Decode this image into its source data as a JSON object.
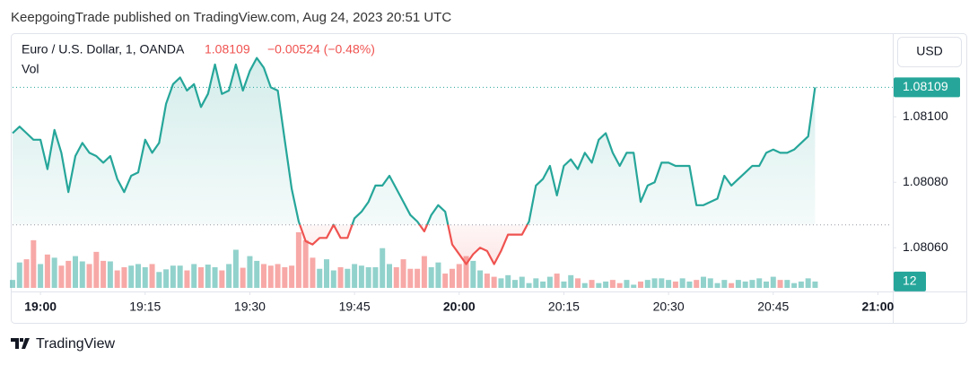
{
  "header": "KeepgoingTrade published on TradingView.com, Aug 24, 2023 20:51 UTC",
  "footer": "TradingView",
  "chart_data": {
    "type": "baseline",
    "title": "Euro / U.S. Dollar, 1, OANDA",
    "change": "−0.00524 (−0.48%)",
    "volume_name": "Vol",
    "currency": "USD",
    "colors": {
      "up": "#26a69a",
      "down": "#ef5350"
    },
    "baseline": 1.08067,
    "x": [
      "18:56",
      "18:57",
      "18:58",
      "18:59",
      "19:00",
      "19:01",
      "19:02",
      "19:03",
      "19:04",
      "19:05",
      "19:06",
      "19:07",
      "19:08",
      "19:09",
      "19:10",
      "19:11",
      "19:12",
      "19:13",
      "19:14",
      "19:15",
      "19:16",
      "19:17",
      "19:18",
      "19:19",
      "19:20",
      "19:21",
      "19:22",
      "19:23",
      "19:24",
      "19:25",
      "19:26",
      "19:27",
      "19:28",
      "19:29",
      "19:30",
      "19:31",
      "19:32",
      "19:33",
      "19:34",
      "19:35",
      "19:36",
      "19:37",
      "19:38",
      "19:39",
      "19:40",
      "19:41",
      "19:42",
      "19:43",
      "19:44",
      "19:45",
      "19:46",
      "19:47",
      "19:48",
      "19:49",
      "19:50",
      "19:51",
      "19:52",
      "19:53",
      "19:54",
      "19:55",
      "19:56",
      "19:57",
      "19:58",
      "19:59",
      "20:00",
      "20:01",
      "20:02",
      "20:03",
      "20:04",
      "20:05",
      "20:06",
      "20:07",
      "20:08",
      "20:09",
      "20:10",
      "20:11",
      "20:12",
      "20:13",
      "20:14",
      "20:15",
      "20:16",
      "20:17",
      "20:18",
      "20:19",
      "20:20",
      "20:21",
      "20:22",
      "20:23",
      "20:24",
      "20:25",
      "20:26",
      "20:27",
      "20:28",
      "20:29",
      "20:30",
      "20:31",
      "20:32",
      "20:33",
      "20:34",
      "20:35",
      "20:36",
      "20:37",
      "20:38",
      "20:39",
      "20:40",
      "20:41",
      "20:42",
      "20:43",
      "20:44",
      "20:45",
      "20:46",
      "20:47",
      "20:48",
      "20:49",
      "20:50",
      "20:51"
    ],
    "values": [
      1.08095,
      1.08097,
      1.08095,
      1.08093,
      1.08093,
      1.08084,
      1.08096,
      1.08089,
      1.08077,
      1.08088,
      1.08092,
      1.08089,
      1.08088,
      1.08086,
      1.08088,
      1.08081,
      1.08077,
      1.08082,
      1.08083,
      1.08093,
      1.08089,
      1.08092,
      1.08104,
      1.0811,
      1.08112,
      1.08108,
      1.0811,
      1.08103,
      1.08107,
      1.08116,
      1.08107,
      1.08108,
      1.08116,
      1.08108,
      1.08114,
      1.08118,
      1.08115,
      1.08109,
      1.08108,
      1.08093,
      1.08078,
      1.08068,
      1.08062,
      1.08061,
      1.08063,
      1.08063,
      1.08067,
      1.08063,
      1.08063,
      1.08069,
      1.08071,
      1.08074,
      1.08079,
      1.08079,
      1.08082,
      1.08078,
      1.08074,
      1.0807,
      1.08068,
      1.08065,
      1.0807,
      1.08073,
      1.08071,
      1.08061,
      1.08058,
      1.08055,
      1.08058,
      1.0806,
      1.08059,
      1.08055,
      1.08059,
      1.08064,
      1.08064,
      1.08064,
      1.08068,
      1.08079,
      1.08081,
      1.08085,
      1.08076,
      1.08085,
      1.08087,
      1.08084,
      1.08089,
      1.08086,
      1.08093,
      1.08095,
      1.08089,
      1.08085,
      1.08089,
      1.08089,
      1.08074,
      1.08079,
      1.0808,
      1.08086,
      1.08086,
      1.08085,
      1.08085,
      1.08085,
      1.08073,
      1.08073,
      1.08074,
      1.08075,
      1.08082,
      1.08079,
      1.08081,
      1.08083,
      1.08085,
      1.08085,
      1.08089,
      1.0809,
      1.08089,
      1.08089,
      1.0809,
      1.08092,
      1.08094,
      1.08109
    ],
    "volume": [
      15,
      48,
      54,
      90,
      45,
      63,
      57,
      42,
      51,
      60,
      50,
      45,
      68,
      51,
      50,
      33,
      39,
      42,
      45,
      39,
      45,
      30,
      35,
      42,
      42,
      33,
      45,
      39,
      44,
      39,
      33,
      45,
      72,
      38,
      60,
      51,
      45,
      42,
      45,
      39,
      42,
      105,
      90,
      57,
      36,
      54,
      33,
      39,
      36,
      45,
      42,
      39,
      39,
      75,
      45,
      39,
      54,
      36,
      36,
      60,
      39,
      48,
      27,
      36,
      45,
      60,
      51,
      33,
      27,
      21,
      18,
      24,
      15,
      21,
      9,
      18,
      12,
      21,
      27,
      12,
      24,
      18,
      9,
      15,
      9,
      12,
      15,
      9,
      15,
      6,
      12,
      15,
      18,
      18,
      15,
      12,
      18,
      12,
      15,
      21,
      18,
      9,
      15,
      9,
      15,
      12,
      15,
      18,
      12,
      21,
      15,
      15,
      9,
      12,
      18,
      12
    ],
    "xlim": [
      "18:56",
      "21:02"
    ],
    "xticks": [
      "19:00",
      "19:15",
      "19:30",
      "19:45",
      "20:00",
      "20:15",
      "20:30",
      "20:45",
      "21:00"
    ],
    "ylim": [
      1.08045,
      1.08125
    ],
    "yticks": [
      {
        "value": 1.0806,
        "label": "1.08060"
      },
      {
        "value": 1.0808,
        "label": "1.08080"
      },
      {
        "value": 1.081,
        "label": "1.08100"
      }
    ]
  }
}
